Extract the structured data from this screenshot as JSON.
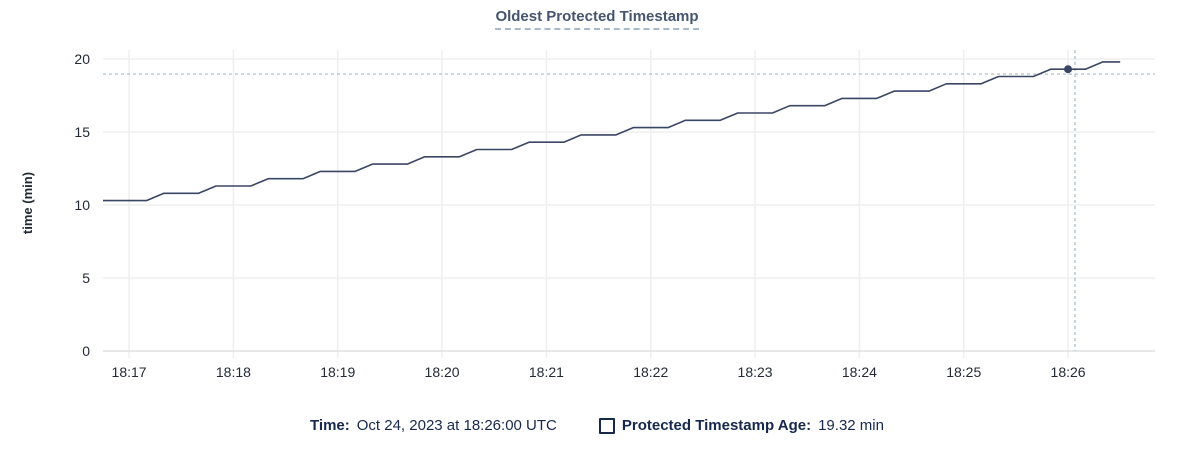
{
  "colors": {
    "title": "#45556f",
    "title_underline": "#a8b9c9",
    "line": "#3a4764",
    "dot": "#3a4764",
    "crosshair": "#a3bac9",
    "grid": "#efefef",
    "grid_zero": "#e0e0e0",
    "axis_text": "#242a35",
    "legend_text": "#16294d",
    "background": "#ffffff"
  },
  "legend": {
    "time_label": "Time:",
    "time_value": "Oct 24, 2023 at 18:26:00 UTC",
    "series_label": "Protected Timestamp Age:",
    "series_value": "19.32 min"
  },
  "chart_data": {
    "type": "line",
    "title": "Oldest Protected Timestamp",
    "xlabel": "",
    "ylabel": "time (min)",
    "ylim": [
      0,
      20
    ],
    "y_ticks": [
      0,
      5,
      10,
      15,
      20
    ],
    "x_domain_seconds_from_1817": [
      -15,
      590
    ],
    "x_ticks": [
      {
        "t": 0,
        "label": "18:17"
      },
      {
        "t": 60,
        "label": "18:18"
      },
      {
        "t": 120,
        "label": "18:19"
      },
      {
        "t": 180,
        "label": "18:20"
      },
      {
        "t": 240,
        "label": "18:21"
      },
      {
        "t": 300,
        "label": "18:22"
      },
      {
        "t": 360,
        "label": "18:23"
      },
      {
        "t": 420,
        "label": "18:24"
      },
      {
        "t": 480,
        "label": "18:25"
      },
      {
        "t": 540,
        "label": "18:26"
      }
    ],
    "grid": "on",
    "legend_position": "bottom-center",
    "series": [
      {
        "name": "Protected Timestamp Age",
        "unit": "min",
        "points": [
          [
            -15,
            10.3
          ],
          [
            -10,
            10.3
          ],
          [
            0,
            10.3
          ],
          [
            10,
            10.3
          ],
          [
            20,
            10.8
          ],
          [
            30,
            10.8
          ],
          [
            40,
            10.8
          ],
          [
            50,
            11.3
          ],
          [
            60,
            11.3
          ],
          [
            70,
            11.3
          ],
          [
            80,
            11.8
          ],
          [
            90,
            11.8
          ],
          [
            100,
            11.8
          ],
          [
            110,
            12.3
          ],
          [
            120,
            12.3
          ],
          [
            130,
            12.3
          ],
          [
            140,
            12.8
          ],
          [
            150,
            12.8
          ],
          [
            160,
            12.8
          ],
          [
            170,
            13.3
          ],
          [
            180,
            13.3
          ],
          [
            190,
            13.3
          ],
          [
            200,
            13.8
          ],
          [
            210,
            13.8
          ],
          [
            220,
            13.8
          ],
          [
            230,
            14.3
          ],
          [
            240,
            14.3
          ],
          [
            250,
            14.3
          ],
          [
            260,
            14.8
          ],
          [
            270,
            14.8
          ],
          [
            280,
            14.8
          ],
          [
            290,
            15.3
          ],
          [
            300,
            15.3
          ],
          [
            310,
            15.3
          ],
          [
            320,
            15.8
          ],
          [
            330,
            15.8
          ],
          [
            340,
            15.8
          ],
          [
            350,
            16.3
          ],
          [
            360,
            16.3
          ],
          [
            370,
            16.3
          ],
          [
            380,
            16.8
          ],
          [
            390,
            16.8
          ],
          [
            400,
            16.8
          ],
          [
            410,
            17.3
          ],
          [
            420,
            17.3
          ],
          [
            430,
            17.3
          ],
          [
            440,
            17.8
          ],
          [
            450,
            17.8
          ],
          [
            460,
            17.8
          ],
          [
            470,
            18.3
          ],
          [
            480,
            18.3
          ],
          [
            490,
            18.3
          ],
          [
            500,
            18.8
          ],
          [
            510,
            18.8
          ],
          [
            520,
            18.8
          ],
          [
            530,
            19.3
          ],
          [
            540,
            19.3
          ],
          [
            550,
            19.3
          ],
          [
            560,
            19.8
          ],
          [
            570,
            19.8
          ]
        ]
      }
    ],
    "hover": {
      "crosshair_t": 544,
      "crosshair_value": 18.97,
      "snapped_point_t": 540,
      "snapped_point_value": 19.3,
      "time_display": "Oct 24, 2023 at 18:26:00 UTC",
      "value_display": "19.32 min"
    }
  }
}
